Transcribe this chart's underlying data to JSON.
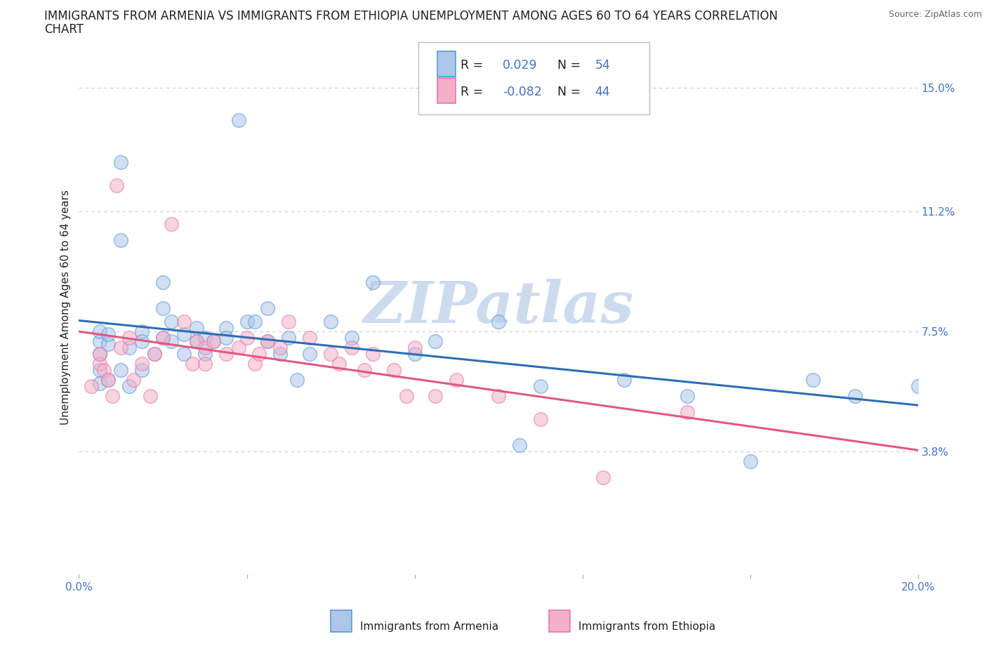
{
  "title_line1": "IMMIGRANTS FROM ARMENIA VS IMMIGRANTS FROM ETHIOPIA UNEMPLOYMENT AMONG AGES 60 TO 64 YEARS CORRELATION",
  "title_line2": "CHART",
  "source": "Source: ZipAtlas.com",
  "ylabel": "Unemployment Among Ages 60 to 64 years",
  "xlim": [
    0.0,
    0.2
  ],
  "ylim": [
    0.0,
    0.165
  ],
  "xticks": [
    0.0,
    0.04,
    0.08,
    0.12,
    0.16,
    0.2
  ],
  "xticklabels": [
    "0.0%",
    "",
    "",
    "",
    "",
    "20.0%"
  ],
  "ytick_positions": [
    0.038,
    0.075,
    0.112,
    0.15
  ],
  "ytick_labels": [
    "3.8%",
    "7.5%",
    "11.2%",
    "15.0%"
  ],
  "armenia_color": "#aec6ea",
  "ethiopia_color": "#f4afc8",
  "armenia_edge_color": "#5b9bd5",
  "ethiopia_edge_color": "#e87aab",
  "armenia_line_color": "#2e6db4",
  "ethiopia_line_color": "#e05880",
  "legend_r_armenia": "0.029",
  "legend_n_armenia": "54",
  "legend_r_ethiopia": "-0.082",
  "legend_n_ethiopia": "44",
  "legend_label_armenia": "Immigrants from Armenia",
  "legend_label_ethiopia": "Immigrants from Ethiopia",
  "blue_text_color": "#4472c4",
  "dark_text_color": "#222222",
  "source_color": "#666666",
  "grid_color": "#cccccc",
  "background_color": "#ffffff",
  "watermark_text": "ZIPatlas",
  "watermark_color": "#c8d8ee",
  "tick_fontsize": 11,
  "axis_label_fontsize": 11,
  "title_fontsize": 12,
  "scatter_size": 200,
  "scatter_alpha": 0.55,
  "scatter_lw": 1.2,
  "armenia_scatter_x": [
    0.005,
    0.005,
    0.005,
    0.005,
    0.005,
    0.007,
    0.007,
    0.007,
    0.01,
    0.01,
    0.01,
    0.012,
    0.012,
    0.015,
    0.015,
    0.015,
    0.018,
    0.02,
    0.02,
    0.02,
    0.022,
    0.022,
    0.025,
    0.025,
    0.028,
    0.028,
    0.03,
    0.03,
    0.032,
    0.035,
    0.035,
    0.038,
    0.04,
    0.042,
    0.045,
    0.045,
    0.048,
    0.05,
    0.052,
    0.055,
    0.06,
    0.065,
    0.07,
    0.08,
    0.085,
    0.1,
    0.105,
    0.11,
    0.13,
    0.145,
    0.16,
    0.175,
    0.185,
    0.2
  ],
  "armenia_scatter_y": [
    0.068,
    0.072,
    0.075,
    0.063,
    0.059,
    0.071,
    0.074,
    0.06,
    0.103,
    0.127,
    0.063,
    0.058,
    0.07,
    0.075,
    0.072,
    0.063,
    0.068,
    0.073,
    0.082,
    0.09,
    0.078,
    0.072,
    0.074,
    0.068,
    0.072,
    0.076,
    0.068,
    0.073,
    0.072,
    0.076,
    0.073,
    0.14,
    0.078,
    0.078,
    0.082,
    0.072,
    0.068,
    0.073,
    0.06,
    0.068,
    0.078,
    0.073,
    0.09,
    0.068,
    0.072,
    0.078,
    0.04,
    0.058,
    0.06,
    0.055,
    0.035,
    0.06,
    0.055,
    0.058
  ],
  "ethiopia_scatter_x": [
    0.003,
    0.005,
    0.005,
    0.006,
    0.007,
    0.008,
    0.009,
    0.01,
    0.012,
    0.013,
    0.015,
    0.017,
    0.018,
    0.02,
    0.022,
    0.025,
    0.027,
    0.028,
    0.03,
    0.03,
    0.032,
    0.035,
    0.038,
    0.04,
    0.042,
    0.043,
    0.045,
    0.048,
    0.05,
    0.055,
    0.06,
    0.062,
    0.065,
    0.068,
    0.07,
    0.075,
    0.078,
    0.08,
    0.085,
    0.09,
    0.1,
    0.11,
    0.125,
    0.145
  ],
  "ethiopia_scatter_y": [
    0.058,
    0.065,
    0.068,
    0.063,
    0.06,
    0.055,
    0.12,
    0.07,
    0.073,
    0.06,
    0.065,
    0.055,
    0.068,
    0.073,
    0.108,
    0.078,
    0.065,
    0.072,
    0.065,
    0.07,
    0.072,
    0.068,
    0.07,
    0.073,
    0.065,
    0.068,
    0.072,
    0.07,
    0.078,
    0.073,
    0.068,
    0.065,
    0.07,
    0.063,
    0.068,
    0.063,
    0.055,
    0.07,
    0.055,
    0.06,
    0.055,
    0.048,
    0.03,
    0.05
  ]
}
